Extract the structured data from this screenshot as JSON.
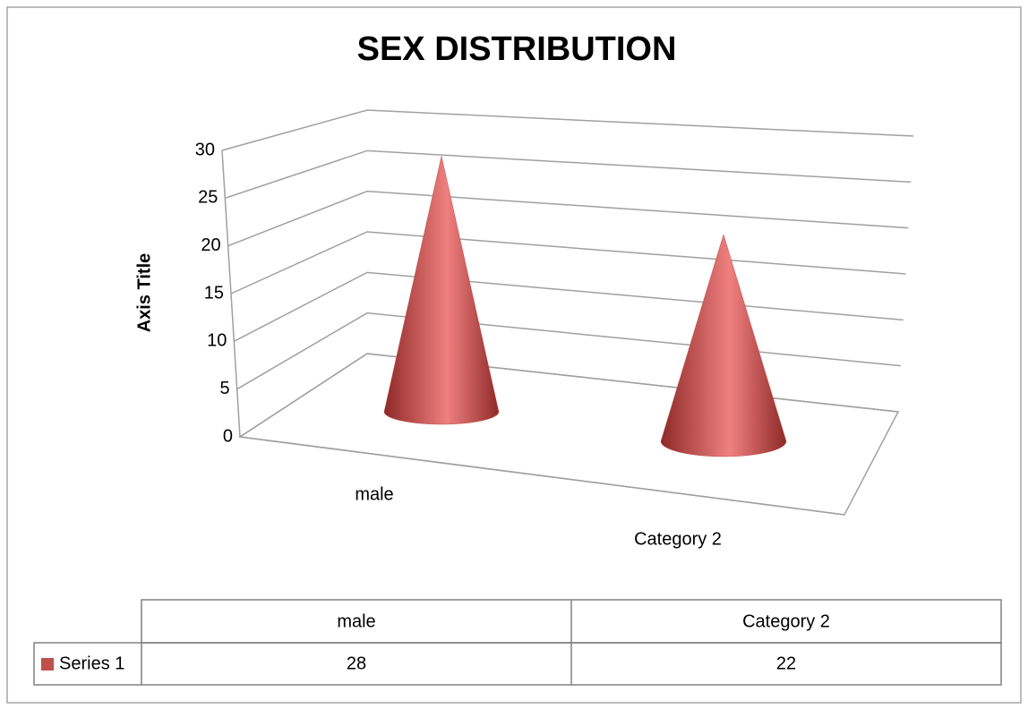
{
  "chart_data": {
    "type": "cone",
    "title": "SEX DISTRIBUTION",
    "y_axis_title": "Axis Title",
    "categories": [
      "male",
      "Category 2"
    ],
    "series": [
      {
        "name": "Series 1",
        "color": "#c0504d",
        "values": [
          28,
          22
        ]
      }
    ],
    "ylim": [
      0,
      30
    ],
    "yticks": [
      0,
      5,
      10,
      15,
      20,
      25,
      30
    ],
    "grid": true,
    "data_table": true
  }
}
